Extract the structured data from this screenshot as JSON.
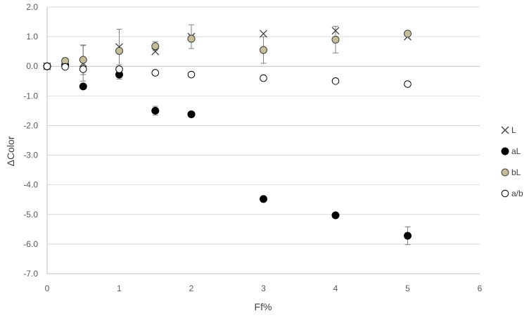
{
  "chart_data": {
    "type": "scatter",
    "title": "",
    "xlabel": "Ff%",
    "ylabel": "ΔColor",
    "xlim": [
      0,
      6
    ],
    "ylim": [
      -7,
      2
    ],
    "xticks": [
      0,
      1,
      2,
      3,
      4,
      5,
      6
    ],
    "yticks": [
      -7,
      -6,
      -5,
      -4,
      -3,
      -2,
      -1,
      0,
      1,
      2
    ],
    "ytick_labels": [
      "-7.0",
      "-6.0",
      "-5.0",
      "-4.0",
      "-3.0",
      "-2.0",
      "-1.0",
      "0.0",
      "1.0",
      "2.0"
    ],
    "grid": "horizontal",
    "legend_position": "right",
    "series": [
      {
        "name": "L",
        "marker": "x",
        "color": "#404040",
        "points": [
          {
            "x": 0,
            "y": 0.0
          },
          {
            "x": 0.25,
            "y": 0.1
          },
          {
            "x": 0.5,
            "y": 0.1,
            "err": 0.6
          },
          {
            "x": 1,
            "y": 0.65,
            "err": 0.6
          },
          {
            "x": 1.5,
            "y": 0.5
          },
          {
            "x": 2,
            "y": 1.0,
            "err": 0.4
          },
          {
            "x": 3,
            "y": 1.1
          },
          {
            "x": 4,
            "y": 1.2
          },
          {
            "x": 5,
            "y": 1.0
          }
        ]
      },
      {
        "name": "aL",
        "marker": "filled-circle",
        "color": "#000000",
        "points": [
          {
            "x": 0,
            "y": 0.0
          },
          {
            "x": 0.25,
            "y": 0.05
          },
          {
            "x": 0.5,
            "y": -0.68
          },
          {
            "x": 1,
            "y": -0.28,
            "err": 0.15
          },
          {
            "x": 1.5,
            "y": -1.5,
            "err": 0.15
          },
          {
            "x": 2,
            "y": -1.62
          },
          {
            "x": 3,
            "y": -4.48
          },
          {
            "x": 4,
            "y": -5.03
          },
          {
            "x": 5,
            "y": -5.72,
            "err": 0.3
          }
        ]
      },
      {
        "name": "bL",
        "marker": "filled-circle",
        "color": "#c4bd97",
        "points": [
          {
            "x": 0,
            "y": 0.0
          },
          {
            "x": 0.25,
            "y": 0.18,
            "err": 0.1
          },
          {
            "x": 0.5,
            "y": 0.22,
            "err": 0.5
          },
          {
            "x": 1,
            "y": 0.52
          },
          {
            "x": 1.5,
            "y": 0.68,
            "err": 0.15
          },
          {
            "x": 2,
            "y": 0.93
          },
          {
            "x": 3,
            "y": 0.55,
            "err": 0.45
          },
          {
            "x": 4,
            "y": 0.9,
            "err": 0.45
          },
          {
            "x": 5,
            "y": 1.1
          }
        ]
      },
      {
        "name": "a/b",
        "marker": "open-circle",
        "color": "#000000",
        "points": [
          {
            "x": 0,
            "y": 0.0
          },
          {
            "x": 0.25,
            "y": -0.02
          },
          {
            "x": 0.5,
            "y": -0.1
          },
          {
            "x": 1,
            "y": -0.1
          },
          {
            "x": 1.5,
            "y": -0.22
          },
          {
            "x": 2,
            "y": -0.28
          },
          {
            "x": 3,
            "y": -0.4
          },
          {
            "x": 4,
            "y": -0.5
          },
          {
            "x": 5,
            "y": -0.6
          }
        ]
      }
    ]
  }
}
